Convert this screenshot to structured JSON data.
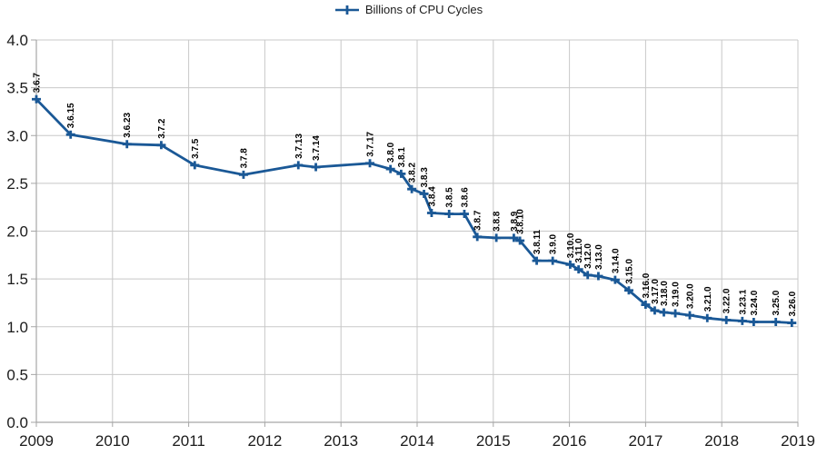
{
  "chart_data": {
    "type": "line",
    "title": "",
    "series_name": "Billions of CPU Cycles",
    "legend_position": "top-center",
    "grid": true,
    "colors": {
      "line": "#1A5896",
      "marker": "#1A5896",
      "gridline": "#C8C8C8",
      "axis": "#A6A6A6",
      "tick_text": "#1c1c1c",
      "point_label": "#000000"
    },
    "x_axis": {
      "min": 2009,
      "max": 2019,
      "tick_step": 1,
      "tick_labels": [
        "2009",
        "2010",
        "2011",
        "2012",
        "2013",
        "2014",
        "2015",
        "2016",
        "2017",
        "2018",
        "2019"
      ]
    },
    "y_axis": {
      "min": 0.0,
      "max": 4.0,
      "tick_step": 0.5,
      "tick_labels": [
        "0.0",
        "0.5",
        "1.0",
        "1.5",
        "2.0",
        "2.5",
        "3.0",
        "3.5",
        "4.0"
      ]
    },
    "points": [
      {
        "label": "3.6.7",
        "x": 2009.0,
        "y": 3.38
      },
      {
        "label": "3.6.15",
        "x": 2009.45,
        "y": 3.01
      },
      {
        "label": "3.6.23",
        "x": 2010.19,
        "y": 2.91
      },
      {
        "label": "3.7.2",
        "x": 2010.64,
        "y": 2.9
      },
      {
        "label": "3.7.5",
        "x": 2011.08,
        "y": 2.69
      },
      {
        "label": "3.7.8",
        "x": 2011.72,
        "y": 2.59
      },
      {
        "label": "3.7.13",
        "x": 2012.44,
        "y": 2.69
      },
      {
        "label": "3.7.14",
        "x": 2012.67,
        "y": 2.67
      },
      {
        "label": "3.7.17",
        "x": 2013.38,
        "y": 2.71
      },
      {
        "label": "3.8.0",
        "x": 2013.65,
        "y": 2.65
      },
      {
        "label": "3.8.1",
        "x": 2013.79,
        "y": 2.6
      },
      {
        "label": "3.8.2",
        "x": 2013.93,
        "y": 2.44
      },
      {
        "label": "3.8.3",
        "x": 2014.09,
        "y": 2.39
      },
      {
        "label": "3.8.4",
        "x": 2014.19,
        "y": 2.19
      },
      {
        "label": "3.8.5",
        "x": 2014.42,
        "y": 2.18
      },
      {
        "label": "3.8.6",
        "x": 2014.62,
        "y": 2.18
      },
      {
        "label": "3.8.7",
        "x": 2014.79,
        "y": 1.94
      },
      {
        "label": "3.8.8",
        "x": 2015.04,
        "y": 1.93
      },
      {
        "label": "3.8.9",
        "x": 2015.27,
        "y": 1.93
      },
      {
        "label": "3.8.10",
        "x": 2015.35,
        "y": 1.9
      },
      {
        "label": "3.8.11",
        "x": 2015.57,
        "y": 1.69
      },
      {
        "label": "3.9.0",
        "x": 2015.78,
        "y": 1.69
      },
      {
        "label": "3.10.0",
        "x": 2016.01,
        "y": 1.65
      },
      {
        "label": "3.11.0",
        "x": 2016.12,
        "y": 1.6
      },
      {
        "label": "3.12.0",
        "x": 2016.24,
        "y": 1.54
      },
      {
        "label": "3.13.0",
        "x": 2016.38,
        "y": 1.53
      },
      {
        "label": "3.14.0",
        "x": 2016.6,
        "y": 1.49
      },
      {
        "label": "3.15.0",
        "x": 2016.78,
        "y": 1.38
      },
      {
        "label": "3.16.0",
        "x": 2017.0,
        "y": 1.23
      },
      {
        "label": "3.17.0",
        "x": 2017.12,
        "y": 1.17
      },
      {
        "label": "3.18.0",
        "x": 2017.24,
        "y": 1.15
      },
      {
        "label": "3.19.0",
        "x": 2017.39,
        "y": 1.14
      },
      {
        "label": "3.20.0",
        "x": 2017.58,
        "y": 1.12
      },
      {
        "label": "3.21.0",
        "x": 2017.81,
        "y": 1.09
      },
      {
        "label": "3.22.0",
        "x": 2018.06,
        "y": 1.07
      },
      {
        "label": "3.23.1",
        "x": 2018.27,
        "y": 1.06
      },
      {
        "label": "3.24.0",
        "x": 2018.42,
        "y": 1.05
      },
      {
        "label": "3.25.0",
        "x": 2018.71,
        "y": 1.05
      },
      {
        "label": "3.26.0",
        "x": 2018.92,
        "y": 1.04
      }
    ]
  }
}
